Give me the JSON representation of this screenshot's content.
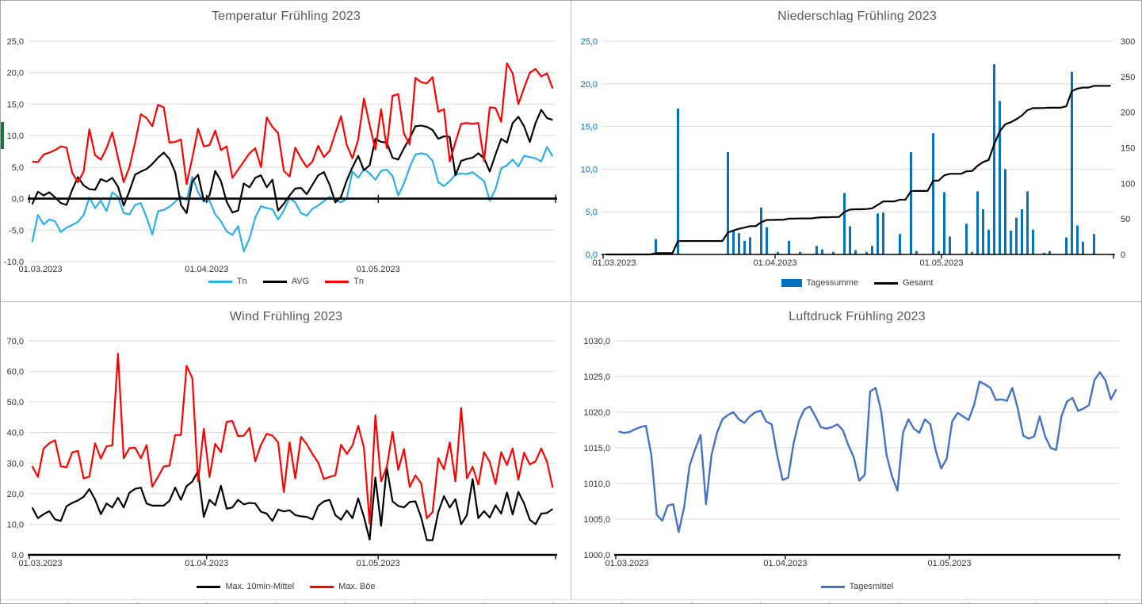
{
  "page": {
    "accents": {
      "sheet_strip_green": "#217346"
    }
  },
  "chart_data": [
    {
      "type": "line",
      "title": "Temperatur Frühling 2023",
      "n": 92,
      "x_ticks": [
        "01.03.2023",
        "01.04.2023",
        "01.05.2023"
      ],
      "x_tick_positions": [
        0,
        31,
        61
      ],
      "ylim": [
        -10,
        25
      ],
      "y_ticks": [
        "25,0",
        "20,0",
        "15,0",
        "10,0",
        "5,0",
        "0,0",
        "-5,0",
        "-10,0"
      ],
      "grid": true,
      "legend_position": "bottom",
      "series": [
        {
          "name": "Tn",
          "color": "#2bb0e8",
          "width": 2.2,
          "values": [
            -6.9,
            -2.6,
            -4.1,
            -3.3,
            -3.6,
            -5.3,
            -4.6,
            -4.2,
            -3.7,
            -2.6,
            0.2,
            -1.5,
            -0.3,
            -2.0,
            1.0,
            0.3,
            -2.3,
            -2.5,
            -1.0,
            -0.7,
            -3.0,
            -5.7,
            -2.0,
            -1.8,
            -1.3,
            -0.5,
            0.3,
            -0.2,
            3.5,
            1.0,
            -0.5,
            -0.3,
            -2.5,
            -3.6,
            -5.2,
            -5.8,
            -4.4,
            -8.4,
            -6.3,
            -3.0,
            -1.2,
            -1.5,
            -1.7,
            -3.3,
            -1.9,
            0.1,
            -0.6,
            -2.3,
            -2.7,
            -1.6,
            -1.1,
            -0.4,
            0.3,
            -0.2,
            -0.6,
            0.0,
            4.3,
            3.3,
            4.7,
            4.0,
            3.0,
            4.4,
            4.6,
            3.6,
            0.5,
            2.4,
            5.0,
            7.0,
            7.2,
            7.0,
            6.0,
            2.6,
            2.0,
            2.8,
            3.8,
            4.0,
            3.9,
            4.2,
            3.5,
            2.8,
            -0.3,
            1.5,
            4.8,
            5.3,
            6.2,
            5.1,
            6.8,
            6.6,
            6.4,
            5.9,
            8.2,
            6.7
          ]
        },
        {
          "name": "AVG",
          "color": "#000000",
          "width": 2.2,
          "values": [
            -0.9,
            1.1,
            0.5,
            1.0,
            0.2,
            -0.7,
            -1.0,
            1.4,
            3.4,
            2.1,
            1.5,
            1.4,
            3.1,
            2.7,
            3.3,
            1.9,
            -1.1,
            1.2,
            3.8,
            4.3,
            4.7,
            5.5,
            6.5,
            7.3,
            6.3,
            4.2,
            -1.0,
            -2.3,
            2.7,
            3.8,
            -0.3,
            0.5,
            4.4,
            2.8,
            -0.5,
            -2.2,
            -1.9,
            2.4,
            1.8,
            3.3,
            3.7,
            1.8,
            3.0,
            -1.9,
            -0.8,
            0.5,
            1.6,
            1.7,
            0.7,
            2.2,
            3.7,
            4.2,
            2.2,
            -0.6,
            0.3,
            2.9,
            5.0,
            6.8,
            4.5,
            5.3,
            9.5,
            9.0,
            8.9,
            6.5,
            6.2,
            8.0,
            9.6,
            11.5,
            11.6,
            11.4,
            10.9,
            9.5,
            9.9,
            9.8,
            3.7,
            6.0,
            6.3,
            6.5,
            7.2,
            6.4,
            4.3,
            7.0,
            9.5,
            8.9,
            12.0,
            13.0,
            11.5,
            9.0,
            12.0,
            14.1,
            12.8,
            12.5
          ]
        },
        {
          "name": "Tn",
          "color": "#ff0000",
          "width": 2.2,
          "values": [
            5.9,
            5.8,
            7.0,
            7.3,
            7.7,
            8.3,
            8.1,
            4.1,
            2.6,
            4.3,
            11.0,
            6.9,
            6.2,
            8.0,
            10.5,
            6.5,
            2.6,
            5.0,
            8.9,
            13.4,
            12.8,
            11.5,
            14.9,
            14.5,
            8.9,
            9.0,
            9.4,
            2.3,
            6.5,
            11.1,
            8.3,
            8.5,
            10.8,
            7.7,
            8.3,
            3.3,
            4.6,
            5.9,
            7.2,
            8.0,
            5.0,
            12.9,
            11.4,
            10.4,
            4.4,
            3.5,
            8.1,
            6.4,
            5.0,
            5.9,
            8.4,
            6.6,
            7.6,
            10.4,
            13.1,
            8.5,
            6.4,
            9.4,
            15.9,
            11.7,
            7.8,
            14.2,
            8.0,
            16.3,
            16.6,
            10.3,
            8.6,
            19.2,
            18.5,
            18.3,
            19.3,
            13.8,
            14.2,
            5.9,
            9.0,
            11.9,
            12.0,
            11.9,
            12.0,
            6.0,
            14.5,
            14.4,
            12.2,
            21.5,
            19.9,
            15.0,
            17.6,
            20.0,
            20.6,
            19.4,
            19.9,
            17.5
          ]
        }
      ]
    },
    {
      "type": "bar",
      "title": "Niederschlag Frühling 2023",
      "n": 92,
      "x_ticks": [
        "01.03.2023",
        "01.04.2023",
        "01.05.2023"
      ],
      "x_tick_positions": [
        0,
        31,
        61
      ],
      "ylim": [
        0,
        25
      ],
      "y_ticks": [
        "25,0",
        "20,0",
        "15,0",
        "10,0",
        "5,0",
        "0,0"
      ],
      "y2lim": [
        0,
        300
      ],
      "y2_ticks": [
        "300",
        "250",
        "200",
        "150",
        "100",
        "50",
        "0"
      ],
      "grid": true,
      "legend_position": "bottom",
      "bars": {
        "name": "Tagessumme",
        "color": "#0070C0",
        "values": [
          0,
          0,
          0,
          0,
          0,
          0,
          0,
          0,
          0,
          1.8,
          0,
          0,
          0,
          17.1,
          0,
          0,
          0,
          0,
          0,
          0,
          0,
          0,
          12.0,
          2.8,
          2.5,
          1.6,
          2.0,
          0,
          5.5,
          3.2,
          0,
          0.3,
          0,
          1.6,
          0,
          0.3,
          0,
          0,
          1.0,
          0.6,
          0,
          0.3,
          0,
          7.2,
          3.3,
          0.5,
          0,
          0.3,
          1.0,
          4.8,
          4.9,
          0,
          0,
          2.4,
          0,
          12.0,
          0.4,
          0,
          0,
          14.2,
          0.4,
          7.3,
          2.1,
          0,
          0,
          3.6,
          0.3,
          7.4,
          5.3,
          2.9,
          22.3,
          18.0,
          10.0,
          2.8,
          4.3,
          5.3,
          7.4,
          2.9,
          0,
          0.2,
          0.4,
          0,
          0,
          2.0,
          21.4,
          3.4,
          1.5,
          0,
          2.4,
          0,
          0,
          0
        ]
      },
      "line": {
        "name": "Gesamt",
        "color": "#000000",
        "cumulative": true,
        "axis": "right"
      }
    },
    {
      "type": "line",
      "title": "Wind Frühling 2023",
      "n": 92,
      "x_ticks": [
        "01.03.2023",
        "01.04.2023",
        "01.05.2023"
      ],
      "x_tick_positions": [
        0,
        31,
        61
      ],
      "ylim": [
        0,
        70
      ],
      "y_ticks": [
        "70,0",
        "60,0",
        "50,0",
        "40,0",
        "30,0",
        "20,0",
        "10,0",
        "0,0"
      ],
      "grid": true,
      "legend_position": "bottom",
      "series": [
        {
          "name": "Max. 10min-Mittel",
          "color": "#000000",
          "width": 2.2,
          "values": [
            15.5,
            12.0,
            13.3,
            14.3,
            11.6,
            11.1,
            15.9,
            17.0,
            17.8,
            19.0,
            21.5,
            18.1,
            13.3,
            16.8,
            15.5,
            18.7,
            15.5,
            20.3,
            21.6,
            22.0,
            16.8,
            16.1,
            16.1,
            16.1,
            17.7,
            22.0,
            18.0,
            22.5,
            24.0,
            27.4,
            12.4,
            18.0,
            16.2,
            22.6,
            15.1,
            15.5,
            18.0,
            16.5,
            17.0,
            16.8,
            14.1,
            13.5,
            11.1,
            14.8,
            14.2,
            14.6,
            13.0,
            12.6,
            12.4,
            11.6,
            16.0,
            17.5,
            18.0,
            13.0,
            11.5,
            14.5,
            12.0,
            18.5,
            12.4,
            5.0,
            25.3,
            9.5,
            28.6,
            17.5,
            16.0,
            15.5,
            17.3,
            17.5,
            12.3,
            4.8,
            4.8,
            14.0,
            19.2,
            15.5,
            18.2,
            10.0,
            13.0,
            24.8,
            12.0,
            14.3,
            12.2,
            16.2,
            13.5,
            20.4,
            13.2,
            20.6,
            16.8,
            11.5,
            10.0,
            13.5,
            13.7,
            15.0
          ]
        },
        {
          "name": "Max. Böe",
          "color": "#ff0000",
          "width": 2.2,
          "values": [
            29.0,
            25.5,
            34.8,
            36.5,
            37.5,
            29.0,
            28.6,
            33.5,
            34.0,
            25.0,
            25.6,
            36.5,
            31.5,
            35.5,
            35.8,
            65.8,
            31.6,
            34.9,
            35.0,
            31.6,
            35.9,
            22.3,
            25.5,
            28.9,
            29.2,
            39.2,
            39.2,
            61.8,
            57.8,
            24.0,
            41.2,
            25.5,
            36.3,
            33.6,
            43.5,
            43.8,
            38.8,
            39.0,
            41.5,
            30.6,
            36.0,
            39.6,
            39.0,
            36.8,
            20.5,
            36.8,
            25.0,
            38.6,
            36.2,
            33.0,
            30.2,
            24.8,
            25.5,
            26.0,
            36.0,
            33.0,
            35.8,
            42.2,
            35.0,
            10.2,
            45.6,
            24.0,
            28.8,
            40.2,
            27.8,
            34.6,
            22.2,
            26.0,
            23.4,
            12.0,
            14.0,
            31.6,
            28.0,
            36.8,
            24.0,
            48.0,
            25.0,
            28.8,
            23.0,
            33.6,
            30.4,
            23.2,
            33.6,
            29.4,
            34.8,
            24.6,
            33.4,
            29.6,
            30.6,
            34.8,
            30.5,
            22.0
          ]
        }
      ]
    },
    {
      "type": "line",
      "title": "Luftdruck Frühling 2023",
      "n": 92,
      "x_ticks": [
        "01.03.2023",
        "01.04.2023",
        "01.05.2023"
      ],
      "x_tick_positions": [
        0,
        31,
        61
      ],
      "ylim": [
        1000,
        1030
      ],
      "y_ticks": [
        "1030,0",
        "1025,0",
        "1020,0",
        "1015,0",
        "1010,0",
        "1005,0",
        "1000,0"
      ],
      "grid": true,
      "legend_position": "bottom",
      "series": [
        {
          "name": "Tagesmittel",
          "color": "#4472C4",
          "width": 2.4,
          "values": [
            1017.3,
            1017.1,
            1017.2,
            1017.6,
            1017.9,
            1018.1,
            1014.0,
            1005.6,
            1004.8,
            1006.9,
            1007.1,
            1003.2,
            1006.7,
            1012.5,
            1014.8,
            1016.8,
            1007.1,
            1014.0,
            1017.1,
            1019.0,
            1019.6,
            1020.0,
            1019.0,
            1018.5,
            1019.4,
            1020.0,
            1020.2,
            1018.7,
            1018.3,
            1014.0,
            1010.5,
            1010.8,
            1015.6,
            1018.8,
            1020.4,
            1020.8,
            1019.4,
            1017.9,
            1017.7,
            1017.9,
            1018.3,
            1017.5,
            1015.4,
            1013.7,
            1010.4,
            1011.2,
            1022.9,
            1023.4,
            1020.2,
            1014.0,
            1011.0,
            1009.0,
            1017.1,
            1019.0,
            1017.7,
            1017.1,
            1019.0,
            1018.3,
            1014.6,
            1012.1,
            1013.5,
            1018.7,
            1019.9,
            1019.4,
            1018.9,
            1021.0,
            1024.3,
            1023.9,
            1023.4,
            1021.7,
            1021.8,
            1021.6,
            1023.4,
            1020.5,
            1016.7,
            1016.3,
            1016.6,
            1019.4,
            1016.6,
            1015.0,
            1014.7,
            1019.5,
            1021.5,
            1022.0,
            1020.2,
            1020.5,
            1021.0,
            1024.5,
            1025.6,
            1024.5,
            1021.8,
            1023.2
          ]
        }
      ]
    }
  ]
}
